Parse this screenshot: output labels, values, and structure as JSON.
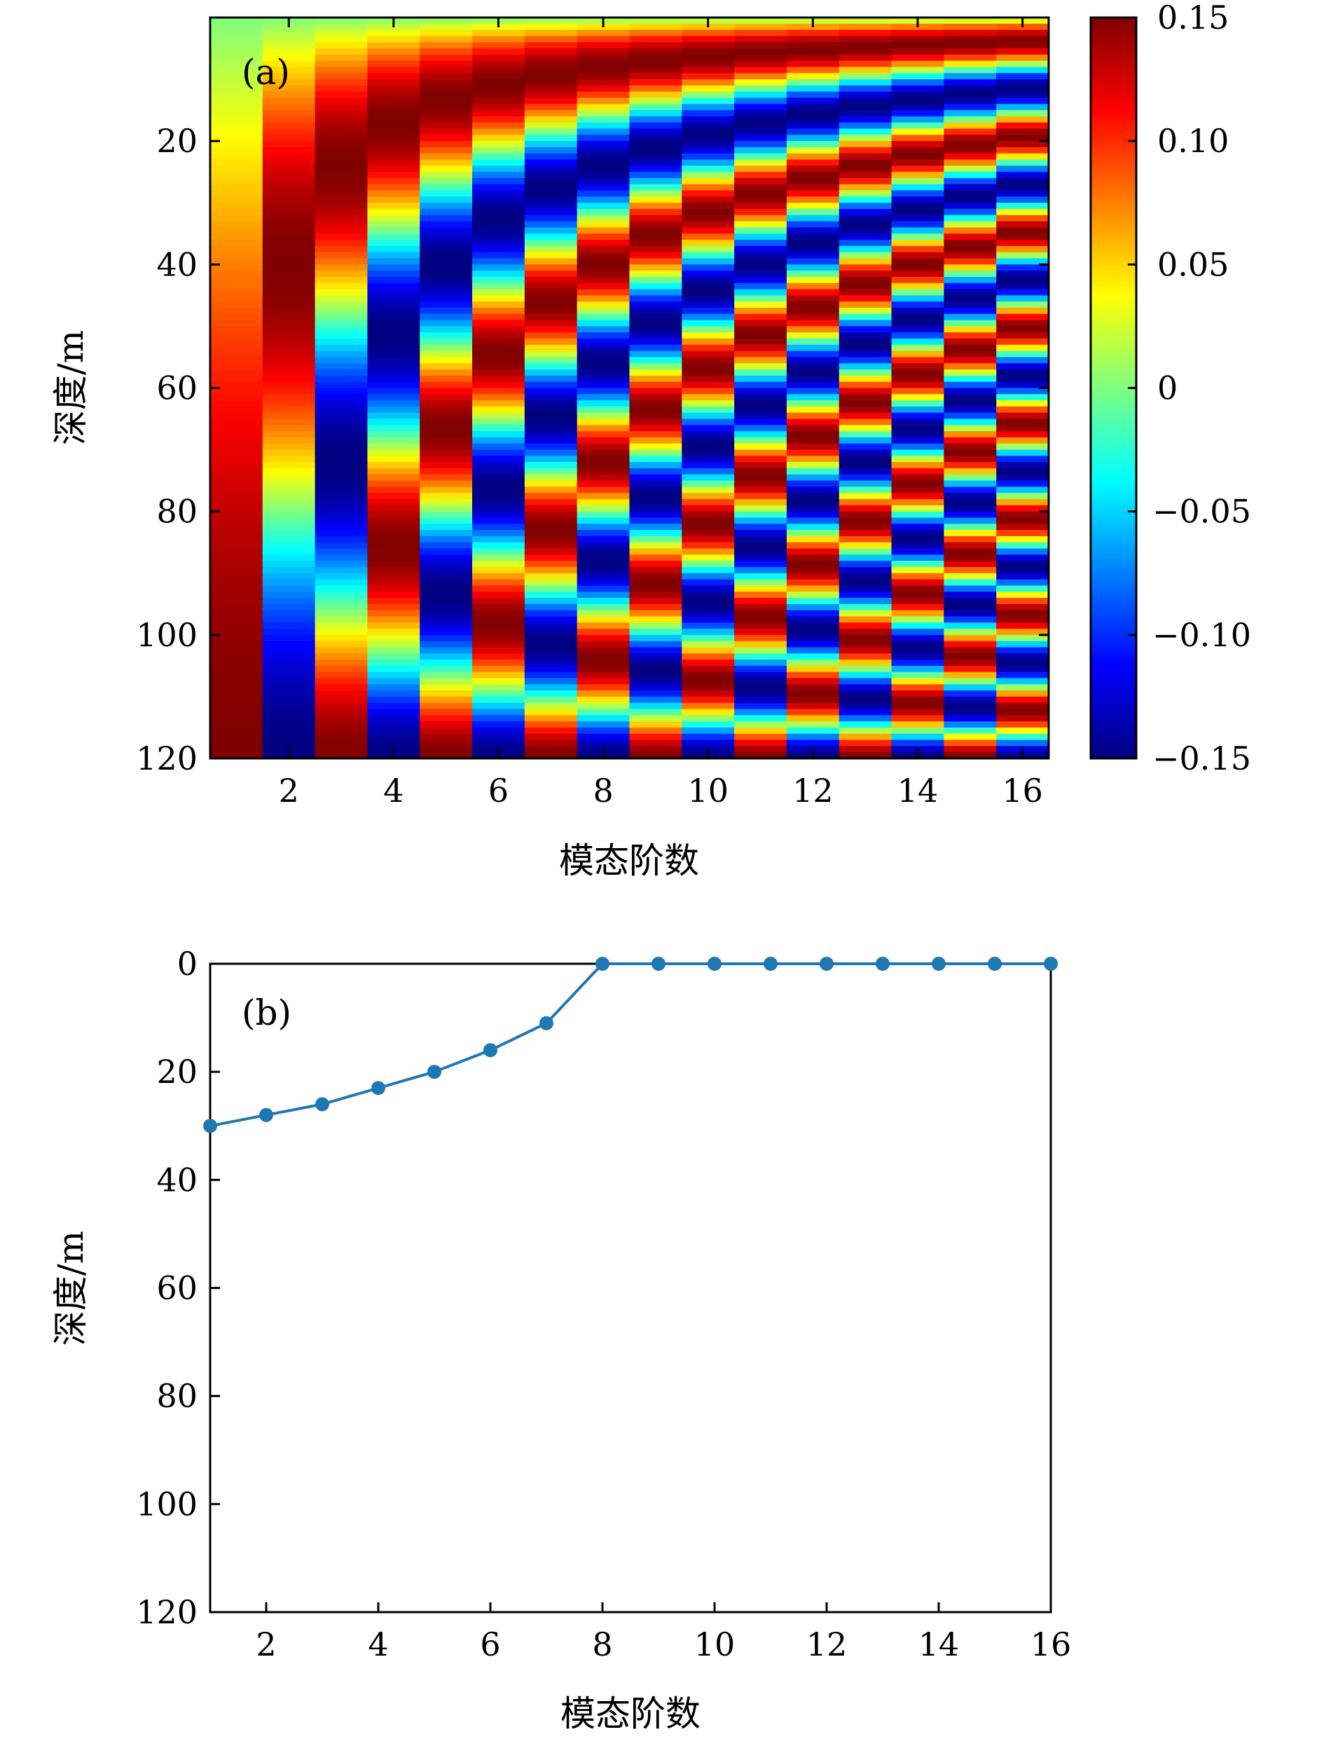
{
  "chart_data": [
    {
      "panel": "(a)",
      "type": "heatmap",
      "xlabel": "模态阶数",
      "ylabel": "深度/m",
      "x_ticks": [
        "2",
        "4",
        "6",
        "8",
        "10",
        "12",
        "14",
        "16"
      ],
      "y_ticks": [
        "20",
        "40",
        "60",
        "80",
        "100",
        "120"
      ],
      "x_range": [
        0.5,
        16.5
      ],
      "y_range": [
        0,
        120
      ],
      "y_inverted": true,
      "modes": 16,
      "colormap": "jet",
      "colorbar": {
        "range": [
          -0.15,
          0.15
        ],
        "ticks": [
          "0.15",
          "0.10",
          "0.05",
          "0",
          "−0.05",
          "−0.10",
          "−0.15"
        ]
      },
      "value_model": "mode n ≈ 0.15·sin((n − 0.5)·π·depth/120)",
      "grid": false
    },
    {
      "panel": "(b)",
      "type": "line",
      "xlabel": "模态阶数",
      "ylabel": "深度/m",
      "x": [
        1,
        2,
        3,
        4,
        5,
        6,
        7,
        8,
        9,
        10,
        11,
        12,
        13,
        14,
        15,
        16
      ],
      "values": [
        30,
        28,
        26,
        23,
        20,
        16,
        11,
        0,
        0,
        0,
        0,
        0,
        0,
        0,
        0,
        0
      ],
      "xlim": [
        1,
        16
      ],
      "ylim": [
        0,
        120
      ],
      "y_inverted": true,
      "x_ticks": [
        "2",
        "4",
        "6",
        "8",
        "10",
        "12",
        "14",
        "16"
      ],
      "y_ticks": [
        "0",
        "20",
        "40",
        "60",
        "80",
        "100",
        "120"
      ],
      "color": "#1f77b4",
      "marker": "circle",
      "grid": false
    }
  ]
}
